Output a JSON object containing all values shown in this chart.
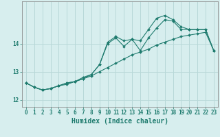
{
  "xlabel": "Humidex (Indice chaleur)",
  "bg_color": "#d7eeee",
  "grid_color": "#b8d8d8",
  "line_color": "#1e7b6e",
  "xlim": [
    -0.5,
    23.5
  ],
  "ylim": [
    11.75,
    15.5
  ],
  "yticks": [
    12,
    13,
    14
  ],
  "xticks": [
    0,
    1,
    2,
    3,
    4,
    5,
    6,
    7,
    8,
    9,
    10,
    11,
    12,
    13,
    14,
    15,
    16,
    17,
    18,
    19,
    20,
    21,
    22,
    23
  ],
  "series1_x": [
    0,
    1,
    2,
    3,
    4,
    5,
    6,
    7,
    8,
    9,
    10,
    11,
    12,
    13,
    14,
    15,
    16,
    17,
    18,
    19,
    20,
    21,
    22,
    23
  ],
  "series1_y": [
    12.6,
    12.45,
    12.35,
    12.4,
    12.5,
    12.55,
    12.65,
    12.75,
    12.85,
    13.0,
    13.15,
    13.3,
    13.45,
    13.6,
    13.7,
    13.8,
    13.95,
    14.05,
    14.15,
    14.25,
    14.3,
    14.35,
    14.4,
    13.75
  ],
  "series2_x": [
    0,
    1,
    2,
    3,
    4,
    5,
    6,
    7,
    8,
    9,
    10,
    11,
    12,
    13,
    14,
    15,
    16,
    17,
    18,
    19,
    20,
    21,
    22,
    23
  ],
  "series2_y": [
    12.6,
    12.45,
    12.35,
    12.4,
    12.5,
    12.6,
    12.65,
    12.75,
    12.9,
    13.25,
    14.0,
    14.2,
    13.9,
    14.15,
    13.75,
    14.2,
    14.55,
    14.85,
    14.8,
    14.5,
    14.5,
    14.5,
    14.5,
    13.75
  ],
  "series3_x": [
    0,
    1,
    2,
    3,
    4,
    5,
    6,
    7,
    8,
    9,
    10,
    11,
    12,
    13,
    14,
    15,
    16,
    17,
    18,
    19,
    20,
    21,
    22,
    23
  ],
  "series3_y": [
    12.6,
    12.45,
    12.35,
    12.4,
    12.5,
    12.6,
    12.65,
    12.8,
    12.9,
    13.25,
    14.05,
    14.25,
    14.1,
    14.15,
    14.1,
    14.5,
    14.9,
    15.0,
    14.85,
    14.6,
    14.5,
    14.5,
    14.5,
    13.75
  ]
}
